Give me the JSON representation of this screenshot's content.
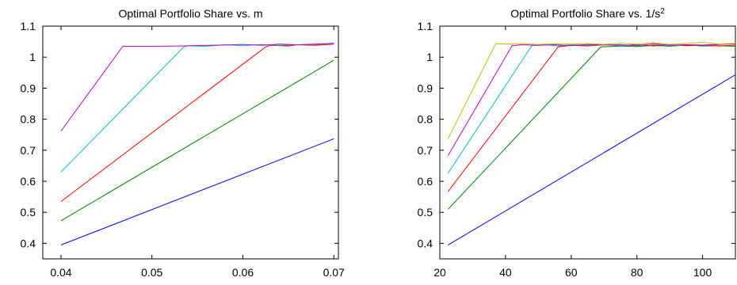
{
  "chart_data": [
    {
      "type": "line",
      "title": "Optimal Portfolio Share vs. m",
      "xlabel": "",
      "ylabel": "",
      "xlim": [
        0.038,
        0.0705
      ],
      "ylim": [
        0.35,
        1.1
      ],
      "grid": false,
      "xticks": [
        0.04,
        0.05,
        0.06,
        0.07
      ],
      "xtick_labels": [
        "0.04",
        "0.05",
        "0.06",
        "0.07"
      ],
      "yticks": [
        0.4,
        0.5,
        0.6,
        0.7,
        0.8,
        0.9,
        1.0,
        1.1
      ],
      "ytick_labels": [
        "0.4",
        "0.5",
        "0.6",
        "0.7",
        "0.8",
        "0.9",
        "1",
        "1.1"
      ],
      "series": [
        {
          "color": "#0000ff",
          "x": [
            0.04,
            0.07
          ],
          "y": [
            0.395,
            0.737
          ]
        },
        {
          "color": "#008000",
          "x": [
            0.04,
            0.07
          ],
          "y": [
            0.473,
            0.99
          ]
        },
        {
          "color": "#ff0000",
          "x": [
            0.04,
            0.0625,
            0.063,
            0.065,
            0.066,
            0.068,
            0.07
          ],
          "y": [
            0.535,
            1.033,
            1.038,
            1.036,
            1.04,
            1.038,
            1.042
          ]
        },
        {
          "color": "#00bfbf",
          "x": [
            0.04,
            0.0535,
            0.054,
            0.056,
            0.058,
            0.06,
            0.062,
            0.064,
            0.066,
            0.068,
            0.07
          ],
          "y": [
            0.63,
            1.033,
            1.037,
            1.035,
            1.04,
            1.037,
            1.041,
            1.038,
            1.04,
            1.041,
            1.043
          ]
        },
        {
          "color": "#bf00bf",
          "x": [
            0.04,
            0.0468,
            0.05,
            0.053,
            0.056,
            0.058,
            0.06,
            0.062,
            0.064,
            0.066,
            0.068,
            0.07
          ],
          "y": [
            0.762,
            1.035,
            1.035,
            1.036,
            1.038,
            1.039,
            1.041,
            1.038,
            1.042,
            1.04,
            1.042,
            1.045
          ]
        }
      ]
    },
    {
      "type": "line",
      "title": "Optimal Portfolio Share vs. 1/s",
      "title_superscript": "2",
      "xlabel": "",
      "ylabel": "",
      "xlim": [
        20,
        110
      ],
      "ylim": [
        0.35,
        1.1
      ],
      "grid": false,
      "xticks": [
        20,
        40,
        60,
        80,
        100
      ],
      "xtick_labels": [
        "20",
        "40",
        "60",
        "80",
        "100"
      ],
      "yticks": [
        0.4,
        0.5,
        0.6,
        0.7,
        0.8,
        0.9,
        1.0,
        1.1
      ],
      "ytick_labels": [
        "0.4",
        "0.5",
        "0.6",
        "0.7",
        "0.8",
        "0.9",
        "1",
        "1.1"
      ],
      "series": [
        {
          "color": "#0000ff",
          "x": [
            22.5,
            110
          ],
          "y": [
            0.395,
            0.943
          ]
        },
        {
          "color": "#008000",
          "x": [
            22.5,
            69,
            75,
            80,
            85,
            90,
            95,
            100,
            105,
            110
          ],
          "y": [
            0.51,
            1.033,
            1.036,
            1.034,
            1.038,
            1.035,
            1.039,
            1.036,
            1.037,
            1.035
          ]
        },
        {
          "color": "#ff0000",
          "x": [
            22.5,
            56,
            60,
            65,
            70,
            75,
            80,
            85,
            90,
            95,
            100,
            105,
            110
          ],
          "y": [
            0.567,
            1.033,
            1.038,
            1.036,
            1.04,
            1.037,
            1.041,
            1.036,
            1.04,
            1.037,
            1.038,
            1.036,
            1.039
          ]
        },
        {
          "color": "#00bfbf",
          "x": [
            22.5,
            48,
            52,
            56,
            60,
            65,
            70,
            75,
            80,
            85,
            90,
            95,
            100,
            105,
            110
          ],
          "y": [
            0.626,
            1.037,
            1.04,
            1.036,
            1.04,
            1.038,
            1.041,
            1.037,
            1.039,
            1.042,
            1.036,
            1.04,
            1.038,
            1.041,
            1.043
          ]
        },
        {
          "color": "#bf00bf",
          "x": [
            22.5,
            42,
            45,
            50,
            55,
            60,
            65,
            70,
            75,
            80,
            85,
            90,
            95,
            100,
            105,
            110
          ],
          "y": [
            0.683,
            1.037,
            1.04,
            1.038,
            1.04,
            1.037,
            1.041,
            1.039,
            1.04,
            1.037,
            1.043,
            1.038,
            1.04,
            1.039,
            1.041,
            1.044
          ]
        },
        {
          "color": "#bfbf00",
          "x": [
            22.5,
            37,
            40,
            45,
            50,
            55,
            60,
            65,
            70,
            75,
            80,
            85,
            90,
            95,
            100,
            105,
            110
          ],
          "y": [
            0.737,
            1.043,
            1.042,
            1.044,
            1.041,
            1.043,
            1.042,
            1.044,
            1.041,
            1.045,
            1.042,
            1.047,
            1.041,
            1.044,
            1.048,
            1.042,
            1.045
          ]
        }
      ]
    }
  ]
}
